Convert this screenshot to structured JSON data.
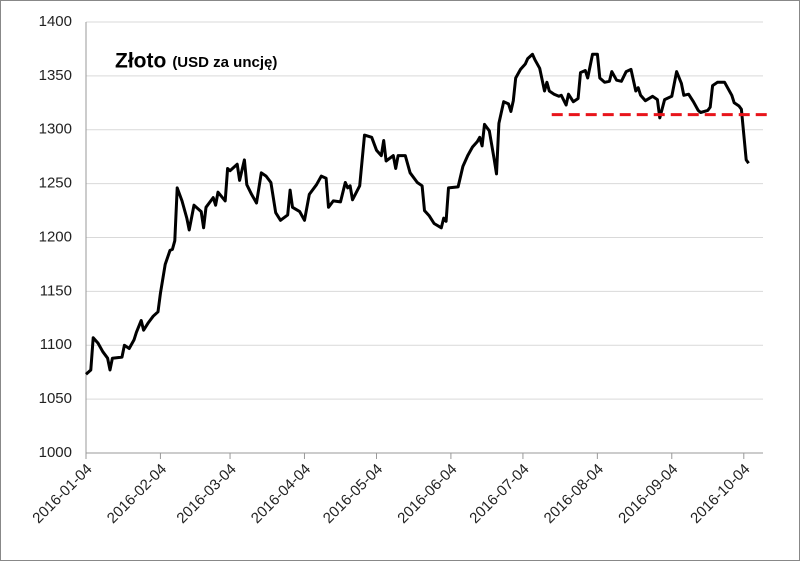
{
  "chart_data": {
    "type": "line",
    "title": "Złoto",
    "subtitle": "(USD za uncję)",
    "x": [
      "2016-01-04",
      "2016-01-06",
      "2016-01-07",
      "2016-01-09",
      "2016-01-11",
      "2016-01-13",
      "2016-01-14",
      "2016-01-15",
      "2016-01-19",
      "2016-01-20",
      "2016-01-22",
      "2016-01-24",
      "2016-01-25",
      "2016-01-27",
      "2016-01-28",
      "2016-01-30",
      "2016-02-01",
      "2016-02-03",
      "2016-02-04",
      "2016-02-06",
      "2016-02-08",
      "2016-02-09",
      "2016-02-10",
      "2016-02-11",
      "2016-02-13",
      "2016-02-15",
      "2016-02-16",
      "2016-02-18",
      "2016-02-21",
      "2016-02-22",
      "2016-02-23",
      "2016-02-26",
      "2016-02-27",
      "2016-02-28",
      "2016-03-02",
      "2016-03-03",
      "2016-03-04",
      "2016-03-07",
      "2016-03-08",
      "2016-03-10",
      "2016-03-11",
      "2016-03-13",
      "2016-03-15",
      "2016-03-17",
      "2016-03-19",
      "2016-03-21",
      "2016-03-22",
      "2016-03-23",
      "2016-03-25",
      "2016-03-28",
      "2016-03-29",
      "2016-03-30",
      "2016-04-02",
      "2016-04-04",
      "2016-04-06",
      "2016-04-09",
      "2016-04-11",
      "2016-04-13",
      "2016-04-14",
      "2016-04-16",
      "2016-04-19",
      "2016-04-21",
      "2016-04-22",
      "2016-04-23",
      "2016-04-24",
      "2016-04-27",
      "2016-04-29",
      "2016-05-02",
      "2016-05-04",
      "2016-05-06",
      "2016-05-07",
      "2016-05-08",
      "2016-05-11",
      "2016-05-12",
      "2016-05-13",
      "2016-05-16",
      "2016-05-18",
      "2016-05-21",
      "2016-05-23",
      "2016-05-24",
      "2016-05-26",
      "2016-05-28",
      "2016-05-31",
      "2016-06-01",
      "2016-06-02",
      "2016-06-03",
      "2016-06-07",
      "2016-06-09",
      "2016-06-11",
      "2016-06-13",
      "2016-06-15",
      "2016-06-16",
      "2016-06-17",
      "2016-06-18",
      "2016-06-20",
      "2016-06-22",
      "2016-06-23",
      "2016-06-24",
      "2016-06-26",
      "2016-06-28",
      "2016-06-29",
      "2016-06-30",
      "2016-07-01",
      "2016-07-03",
      "2016-07-05",
      "2016-07-06",
      "2016-07-08",
      "2016-07-09",
      "2016-07-11",
      "2016-07-13",
      "2016-07-14",
      "2016-07-15",
      "2016-07-17",
      "2016-07-19",
      "2016-07-20",
      "2016-07-22",
      "2016-07-23",
      "2016-07-25",
      "2016-07-27",
      "2016-07-28",
      "2016-07-30",
      "2016-07-31",
      "2016-08-02",
      "2016-08-04",
      "2016-08-05",
      "2016-08-07",
      "2016-08-09",
      "2016-08-10",
      "2016-08-12",
      "2016-08-14",
      "2016-08-16",
      "2016-08-18",
      "2016-08-20",
      "2016-08-21",
      "2016-08-22",
      "2016-08-24",
      "2016-08-27",
      "2016-08-29",
      "2016-08-30",
      "2016-09-01",
      "2016-09-04",
      "2016-09-06",
      "2016-09-08",
      "2016-09-09",
      "2016-09-11",
      "2016-09-13",
      "2016-09-15",
      "2016-09-16",
      "2016-09-19",
      "2016-09-20",
      "2016-09-21",
      "2016-09-23",
      "2016-09-26",
      "2016-09-29",
      "2016-09-30",
      "2016-10-02",
      "2016-10-03",
      "2016-10-05",
      "2016-10-06"
    ],
    "series": [
      {
        "color": "#000000",
        "values": [
          1073,
          1077,
          1107,
          1102,
          1094,
          1088,
          1077,
          1088,
          1089,
          1100,
          1097,
          1105,
          1112,
          1123,
          1114,
          1121,
          1127,
          1131,
          1148,
          1175,
          1188,
          1189,
          1197,
          1246,
          1234,
          1218,
          1207,
          1230,
          1224,
          1209,
          1228,
          1237,
          1230,
          1242,
          1234,
          1264,
          1262,
          1268,
          1253,
          1272,
          1249,
          1240,
          1232,
          1260,
          1257,
          1251,
          1237,
          1223,
          1216,
          1221,
          1244,
          1228,
          1224,
          1216,
          1240,
          1249,
          1257,
          1255,
          1228,
          1234,
          1233,
          1251,
          1246,
          1248,
          1235,
          1248,
          1295,
          1293,
          1281,
          1276,
          1290,
          1271,
          1276,
          1264,
          1276,
          1276,
          1260,
          1251,
          1248,
          1225,
          1220,
          1213,
          1209,
          1218,
          1215,
          1246,
          1247,
          1266,
          1276,
          1284,
          1289,
          1293,
          1285,
          1305,
          1299,
          1273,
          1259,
          1306,
          1326,
          1324,
          1317,
          1327,
          1348,
          1356,
          1361,
          1366,
          1370,
          1365,
          1357,
          1336,
          1344,
          1336,
          1333,
          1331,
          1332,
          1323,
          1333,
          1326,
          1329,
          1353,
          1355,
          1348,
          1370,
          1370,
          1348,
          1344,
          1345,
          1354,
          1346,
          1345,
          1354,
          1356,
          1336,
          1339,
          1332,
          1327,
          1331,
          1328,
          1311,
          1328,
          1331,
          1354,
          1343,
          1332,
          1333,
          1326,
          1318,
          1316,
          1318,
          1321,
          1341,
          1344,
          1344,
          1332,
          1325,
          1322,
          1319,
          1272,
          1269
        ]
      }
    ],
    "reference_line": {
      "value": 1314,
      "x": [
        "2016-07-16",
        "2016-10-16"
      ],
      "color": "#e8141b"
    },
    "xlim": [
      "2016-01-04",
      "2016-10-12"
    ],
    "xticks": [
      "2016-01-04",
      "2016-02-04",
      "2016-03-04",
      "2016-04-04",
      "2016-05-04",
      "2016-06-04",
      "2016-07-04",
      "2016-08-04",
      "2016-09-04",
      "2016-10-04"
    ],
    "ylim": [
      1000,
      1400
    ],
    "yticks": [
      1000,
      1050,
      1100,
      1150,
      1200,
      1250,
      1300,
      1350,
      1400
    ],
    "grid": true
  }
}
